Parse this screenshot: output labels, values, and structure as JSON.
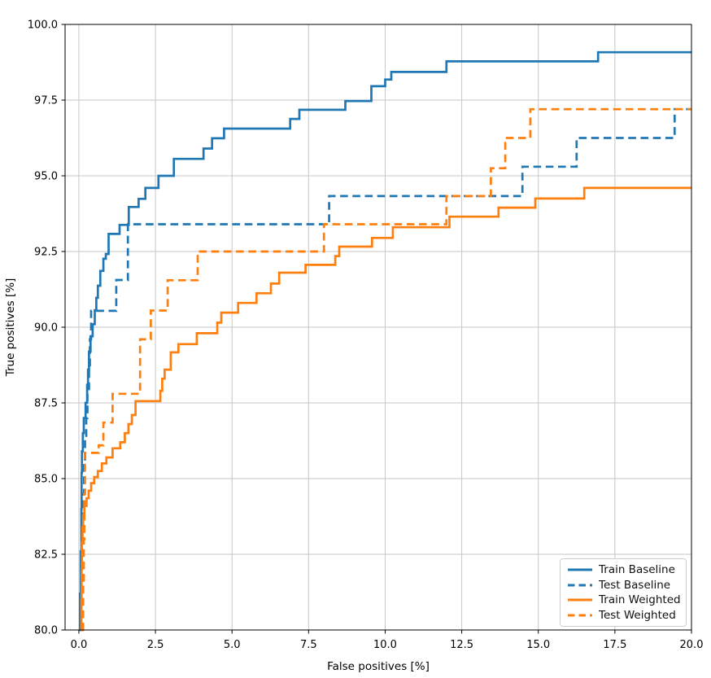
{
  "figure": {
    "background": "#ffffff"
  },
  "chart_data": {
    "type": "line",
    "subtype": "roc-step-curves",
    "title": "",
    "xlabel": "False positives [%]",
    "ylabel": "True positives [%]",
    "xlim": [
      -0.45,
      20.0
    ],
    "ylim": [
      80.0,
      100.0
    ],
    "grid": true,
    "grid_color": "#c6c6c6",
    "spine_color": "#000000",
    "xticks": {
      "values": [
        0.0,
        2.5,
        5.0,
        7.5,
        10.0,
        12.5,
        15.0,
        17.5,
        20.0
      ],
      "labels": [
        "0.0",
        "2.5",
        "5.0",
        "7.5",
        "10.0",
        "12.5",
        "15.0",
        "17.5",
        "20.0"
      ]
    },
    "yticks": {
      "values": [
        80.0,
        82.5,
        85.0,
        87.5,
        90.0,
        92.5,
        95.0,
        97.5,
        100.0
      ],
      "labels": [
        "80.0",
        "82.5",
        "85.0",
        "87.5",
        "90.0",
        "92.5",
        "95.0",
        "97.5",
        "100.0"
      ]
    },
    "legend": {
      "position": "lower right",
      "items": [
        "Train Baseline",
        "Test Baseline",
        "Train Weighted",
        "Test Weighted"
      ]
    },
    "series": [
      {
        "name": "Train Baseline",
        "color": "#1f77b4",
        "style": "solid",
        "points": [
          [
            0.02,
            80.0
          ],
          [
            0.04,
            81.2
          ],
          [
            0.06,
            82.6
          ],
          [
            0.08,
            84.0
          ],
          [
            0.09,
            85.2
          ],
          [
            0.1,
            85.9
          ],
          [
            0.13,
            86.5
          ],
          [
            0.16,
            87.0
          ],
          [
            0.22,
            87.5
          ],
          [
            0.27,
            88.1
          ],
          [
            0.3,
            88.6
          ],
          [
            0.33,
            89.2
          ],
          [
            0.38,
            89.7
          ],
          [
            0.45,
            90.1
          ],
          [
            0.52,
            90.56
          ],
          [
            0.57,
            90.97
          ],
          [
            0.62,
            91.37
          ],
          [
            0.7,
            91.86
          ],
          [
            0.8,
            92.26
          ],
          [
            0.88,
            92.42
          ],
          [
            0.97,
            93.08
          ],
          [
            1.33,
            93.38
          ],
          [
            1.63,
            93.97
          ],
          [
            1.95,
            94.24
          ],
          [
            2.17,
            94.6
          ],
          [
            2.6,
            95.0
          ],
          [
            3.1,
            95.56
          ],
          [
            4.07,
            95.9
          ],
          [
            4.35,
            96.24
          ],
          [
            4.74,
            96.56
          ],
          [
            6.9,
            96.88
          ],
          [
            7.2,
            97.18
          ],
          [
            8.7,
            97.47
          ],
          [
            9.55,
            97.96
          ],
          [
            10.0,
            98.18
          ],
          [
            10.2,
            98.43
          ],
          [
            12.0,
            98.78
          ],
          [
            16.95,
            99.08
          ],
          [
            20.0,
            99.08
          ]
        ]
      },
      {
        "name": "Test Baseline",
        "color": "#1f77b4",
        "style": "dashed",
        "points": [
          [
            0.08,
            80.0
          ],
          [
            0.1,
            81.5
          ],
          [
            0.12,
            83.0
          ],
          [
            0.14,
            84.5
          ],
          [
            0.17,
            85.6
          ],
          [
            0.2,
            86.3
          ],
          [
            0.24,
            87.0
          ],
          [
            0.28,
            87.8
          ],
          [
            0.33,
            88.6
          ],
          [
            0.36,
            89.6
          ],
          [
            0.4,
            90.54
          ],
          [
            1.22,
            91.56
          ],
          [
            1.6,
            93.4
          ],
          [
            8.17,
            94.33
          ],
          [
            14.48,
            95.3
          ],
          [
            16.25,
            96.25
          ],
          [
            19.45,
            97.2
          ],
          [
            20.0,
            97.2
          ]
        ]
      },
      {
        "name": "Train Weighted",
        "color": "#ff7f0e",
        "style": "solid",
        "points": [
          [
            0.06,
            80.0
          ],
          [
            0.08,
            81.0
          ],
          [
            0.09,
            82.0
          ],
          [
            0.1,
            82.9
          ],
          [
            0.12,
            83.4
          ],
          [
            0.14,
            83.8
          ],
          [
            0.18,
            84.1
          ],
          [
            0.25,
            84.35
          ],
          [
            0.32,
            84.6
          ],
          [
            0.4,
            84.85
          ],
          [
            0.5,
            85.05
          ],
          [
            0.62,
            85.25
          ],
          [
            0.75,
            85.5
          ],
          [
            0.9,
            85.7
          ],
          [
            1.1,
            86.0
          ],
          [
            1.35,
            86.2
          ],
          [
            1.5,
            86.5
          ],
          [
            1.62,
            86.8
          ],
          [
            1.73,
            87.1
          ],
          [
            1.85,
            87.56
          ],
          [
            2.66,
            87.9
          ],
          [
            2.72,
            88.3
          ],
          [
            2.8,
            88.6
          ],
          [
            3.0,
            89.17
          ],
          [
            3.25,
            89.44
          ],
          [
            3.85,
            89.8
          ],
          [
            4.52,
            90.15
          ],
          [
            4.65,
            90.48
          ],
          [
            5.2,
            90.8
          ],
          [
            5.8,
            91.12
          ],
          [
            6.27,
            91.44
          ],
          [
            6.54,
            91.8
          ],
          [
            7.4,
            92.06
          ],
          [
            8.37,
            92.35
          ],
          [
            8.5,
            92.66
          ],
          [
            9.57,
            92.95
          ],
          [
            10.25,
            93.3
          ],
          [
            12.1,
            93.65
          ],
          [
            13.7,
            93.95
          ],
          [
            14.9,
            94.25
          ],
          [
            16.5,
            94.6
          ],
          [
            20.0,
            94.6
          ]
        ]
      },
      {
        "name": "Test Weighted",
        "color": "#ff7f0e",
        "style": "dashed",
        "points": [
          [
            0.12,
            80.0
          ],
          [
            0.14,
            81.5
          ],
          [
            0.16,
            83.0
          ],
          [
            0.18,
            84.5
          ],
          [
            0.2,
            85.85
          ],
          [
            0.65,
            86.1
          ],
          [
            0.8,
            86.85
          ],
          [
            1.1,
            87.8
          ],
          [
            2.0,
            89.6
          ],
          [
            2.35,
            90.55
          ],
          [
            2.9,
            91.55
          ],
          [
            3.88,
            92.5
          ],
          [
            8.0,
            93.4
          ],
          [
            12.0,
            94.33
          ],
          [
            13.45,
            95.25
          ],
          [
            13.92,
            96.25
          ],
          [
            14.74,
            97.2
          ],
          [
            20.0,
            97.2
          ]
        ]
      }
    ]
  }
}
